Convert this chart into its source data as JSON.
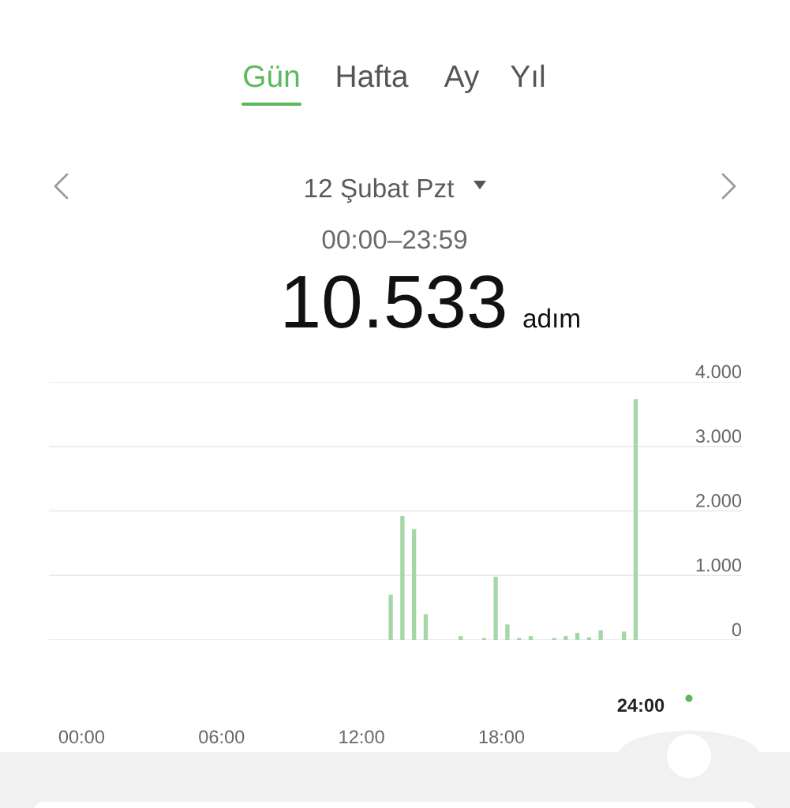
{
  "chart_data": {
    "type": "bar",
    "title": "12 Şubat Pzt",
    "subtitle": "00:00–23:59",
    "annotations": [
      "Gün",
      "Hafta",
      "Ay",
      "Yıl",
      "10.533",
      "adım",
      "24:00"
    ],
    "x": [
      13.25,
      13.75,
      14.25,
      14.75,
      16.25,
      17.25,
      17.75,
      18.25,
      18.75,
      19.25,
      20.25,
      20.75,
      21.25,
      21.75,
      22.25,
      23.25,
      23.75
    ],
    "values": [
      700,
      1920,
      1720,
      400,
      60,
      30,
      980,
      240,
      30,
      60,
      30,
      60,
      110,
      40,
      150,
      130,
      3730
    ],
    "color": "#a5d6a7",
    "xlim": [
      -1.4,
      28.3
    ],
    "ylim": [
      0,
      4000
    ],
    "xticks": [
      {
        "value": 0,
        "label": "00:00"
      },
      {
        "value": 6,
        "label": "06:00"
      },
      {
        "value": 12,
        "label": "12:00"
      },
      {
        "value": 18,
        "label": "18:00"
      }
    ],
    "yticks": [
      0,
      {
        "value": 1000,
        "label": "1.000"
      },
      {
        "value": 2000,
        "label": "2.000"
      },
      {
        "value": 3000,
        "label": "3.000"
      },
      {
        "value": 4000,
        "label": "4.000"
      }
    ],
    "grid": "y"
  }
}
